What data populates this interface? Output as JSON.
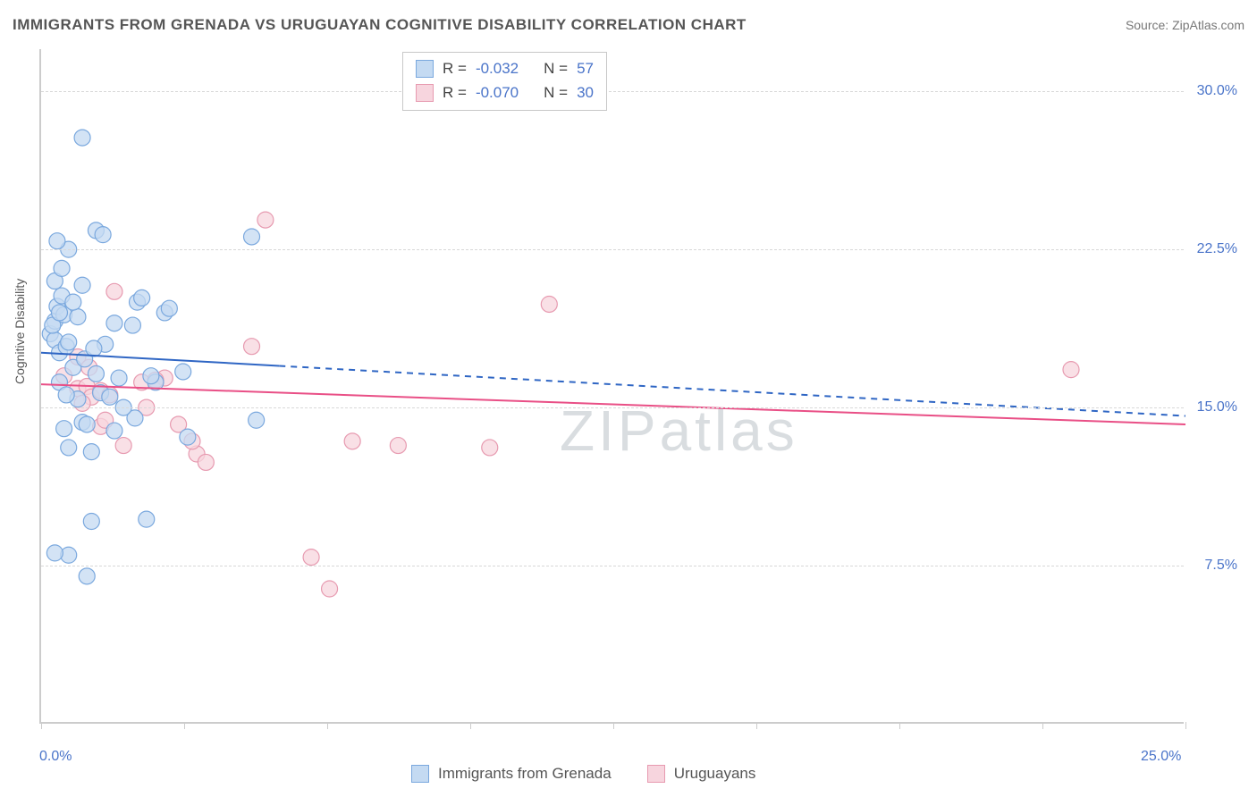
{
  "title": "IMMIGRANTS FROM GRENADA VS URUGUAYAN COGNITIVE DISABILITY CORRELATION CHART",
  "source_label": "Source: ZipAtlas.com",
  "ylabel": "Cognitive Disability",
  "watermark_text": "ZIPatlas",
  "chart": {
    "type": "scatter",
    "xlim": [
      0,
      25
    ],
    "ylim": [
      0,
      32
    ],
    "x_ticks": [
      0,
      3.125,
      6.25,
      9.375,
      12.5,
      15.625,
      18.75,
      21.875,
      25
    ],
    "x_tick_labels_shown": {
      "0": "0.0%",
      "25": "25.0%"
    },
    "y_grid": [
      7.5,
      15.0,
      22.5,
      30.0
    ],
    "y_tick_labels": [
      "7.5%",
      "15.0%",
      "22.5%",
      "30.0%"
    ],
    "background_color": "#ffffff",
    "grid_color": "#d8d8d8",
    "axis_color": "#cccccc",
    "label_color": "#4a74c9",
    "title_color": "#555555"
  },
  "series": [
    {
      "name": "Immigrants from Grenada",
      "marker_fill": "#c4daf2",
      "marker_stroke": "#7aa8de",
      "marker_radius": 9,
      "line_color": "#2f66c4",
      "line_width": 2,
      "line_solid_end_x": 5.2,
      "R": "-0.032",
      "N": "57",
      "regression": {
        "y_at_x0": 17.6,
        "y_at_x25": 14.6
      },
      "points": [
        [
          0.2,
          18.5
        ],
        [
          0.3,
          19.1
        ],
        [
          0.35,
          19.8
        ],
        [
          0.3,
          18.2
        ],
        [
          0.4,
          17.6
        ],
        [
          0.45,
          20.3
        ],
        [
          0.25,
          18.9
        ],
        [
          0.5,
          19.4
        ],
        [
          0.55,
          17.9
        ],
        [
          0.3,
          21.0
        ],
        [
          0.6,
          18.1
        ],
        [
          0.7,
          16.9
        ],
        [
          0.4,
          16.2
        ],
        [
          0.9,
          27.8
        ],
        [
          1.2,
          23.4
        ],
        [
          1.35,
          23.2
        ],
        [
          0.6,
          22.5
        ],
        [
          0.35,
          22.9
        ],
        [
          0.45,
          21.6
        ],
        [
          0.8,
          15.4
        ],
        [
          0.9,
          14.3
        ],
        [
          1.0,
          14.2
        ],
        [
          0.5,
          14.0
        ],
        [
          1.1,
          12.9
        ],
        [
          0.6,
          13.1
        ],
        [
          1.4,
          18.0
        ],
        [
          1.6,
          19.0
        ],
        [
          2.0,
          18.9
        ],
        [
          2.1,
          20.0
        ],
        [
          2.2,
          20.2
        ],
        [
          2.05,
          14.5
        ],
        [
          2.3,
          9.7
        ],
        [
          1.1,
          9.6
        ],
        [
          0.6,
          8.0
        ],
        [
          1.0,
          7.0
        ],
        [
          0.3,
          8.1
        ],
        [
          2.5,
          16.2
        ],
        [
          2.7,
          19.5
        ],
        [
          2.8,
          19.7
        ],
        [
          2.4,
          16.5
        ],
        [
          1.8,
          15.0
        ],
        [
          1.2,
          16.6
        ],
        [
          1.3,
          15.7
        ],
        [
          1.5,
          15.5
        ],
        [
          1.7,
          16.4
        ],
        [
          1.6,
          13.9
        ],
        [
          0.9,
          20.8
        ],
        [
          0.8,
          19.3
        ],
        [
          0.7,
          20.0
        ],
        [
          0.55,
          15.6
        ],
        [
          0.95,
          17.3
        ],
        [
          1.15,
          17.8
        ],
        [
          4.6,
          23.1
        ],
        [
          4.7,
          14.4
        ],
        [
          3.1,
          16.7
        ],
        [
          3.2,
          13.6
        ],
        [
          0.4,
          19.5
        ]
      ]
    },
    {
      "name": "Uruguayans",
      "marker_fill": "#f7d5de",
      "marker_stroke": "#e79ab0",
      "marker_radius": 9,
      "line_color": "#e94f86",
      "line_width": 2,
      "line_solid_end_x": 25,
      "R": "-0.070",
      "N": "30",
      "regression": {
        "y_at_x0": 16.1,
        "y_at_x25": 14.2
      },
      "points": [
        [
          0.5,
          16.5
        ],
        [
          0.8,
          15.9
        ],
        [
          1.0,
          16.0
        ],
        [
          1.1,
          15.5
        ],
        [
          1.3,
          15.8
        ],
        [
          1.5,
          15.6
        ],
        [
          0.8,
          17.4
        ],
        [
          0.9,
          15.2
        ],
        [
          1.6,
          20.5
        ],
        [
          1.3,
          14.1
        ],
        [
          1.4,
          14.4
        ],
        [
          2.2,
          16.2
        ],
        [
          2.7,
          16.4
        ],
        [
          2.5,
          16.3
        ],
        [
          2.3,
          15.0
        ],
        [
          3.0,
          14.2
        ],
        [
          1.8,
          13.2
        ],
        [
          3.4,
          12.8
        ],
        [
          3.3,
          13.4
        ],
        [
          3.6,
          12.4
        ],
        [
          4.9,
          23.9
        ],
        [
          4.6,
          17.9
        ],
        [
          5.9,
          7.9
        ],
        [
          6.3,
          6.4
        ],
        [
          6.8,
          13.4
        ],
        [
          7.8,
          13.2
        ],
        [
          9.8,
          13.1
        ],
        [
          11.1,
          19.9
        ],
        [
          22.5,
          16.8
        ],
        [
          1.05,
          16.9
        ]
      ]
    }
  ],
  "stats_legend": {
    "rows": [
      {
        "swatch_fill": "#c4daf2",
        "swatch_stroke": "#7aa8de",
        "r_label": "R =",
        "r_val": "-0.032",
        "n_label": "N =",
        "n_val": "57"
      },
      {
        "swatch_fill": "#f7d5de",
        "swatch_stroke": "#e79ab0",
        "r_label": "R =",
        "r_val": "-0.070",
        "n_label": "N =",
        "n_val": "30"
      }
    ]
  },
  "bottom_legend": {
    "items": [
      {
        "swatch_fill": "#c4daf2",
        "swatch_stroke": "#7aa8de",
        "label": "Immigrants from Grenada"
      },
      {
        "swatch_fill": "#f7d5de",
        "swatch_stroke": "#e79ab0",
        "label": "Uruguayans"
      }
    ]
  }
}
